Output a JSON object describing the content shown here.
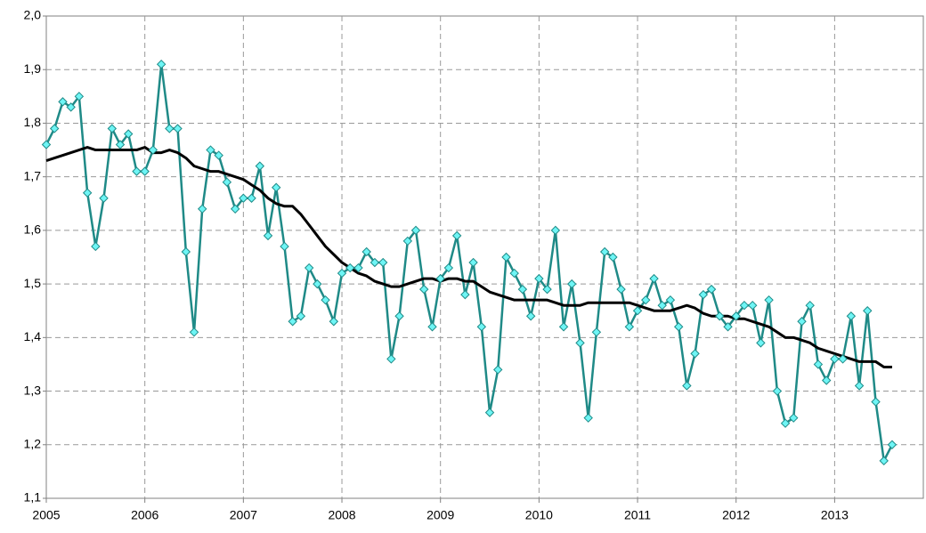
{
  "chart_data": {
    "type": "line",
    "x": [
      2005,
      2005.083,
      2005.167,
      2005.25,
      2005.333,
      2005.417,
      2005.5,
      2005.583,
      2005.667,
      2005.75,
      2005.833,
      2005.917,
      2006,
      2006.083,
      2006.167,
      2006.25,
      2006.333,
      2006.417,
      2006.5,
      2006.583,
      2006.667,
      2006.75,
      2006.833,
      2006.917,
      2007,
      2007.083,
      2007.167,
      2007.25,
      2007.333,
      2007.417,
      2007.5,
      2007.583,
      2007.667,
      2007.75,
      2007.833,
      2007.917,
      2008,
      2008.083,
      2008.167,
      2008.25,
      2008.333,
      2008.417,
      2008.5,
      2008.583,
      2008.667,
      2008.75,
      2008.833,
      2008.917,
      2009,
      2009.083,
      2009.167,
      2009.25,
      2009.333,
      2009.417,
      2009.5,
      2009.583,
      2009.667,
      2009.75,
      2009.833,
      2009.917,
      2010,
      2010.083,
      2010.167,
      2010.25,
      2010.333,
      2010.417,
      2010.5,
      2010.583,
      2010.667,
      2010.75,
      2010.833,
      2010.917,
      2011,
      2011.083,
      2011.167,
      2011.25,
      2011.333,
      2011.417,
      2011.5,
      2011.583,
      2011.667,
      2011.75,
      2011.833,
      2011.917,
      2012,
      2012.083,
      2012.167,
      2012.25,
      2012.333,
      2012.417,
      2012.5,
      2012.583,
      2012.667,
      2012.75,
      2012.833,
      2012.917,
      2013,
      2013.083,
      2013.167,
      2013.25,
      2013.333,
      2013.417,
      2013.5,
      2013.583
    ],
    "series": [
      {
        "color": "#1f8a87",
        "marker": "diamond",
        "marker_color": "#6ef5f5",
        "values": [
          1.76,
          1.79,
          1.84,
          1.83,
          1.85,
          1.67,
          1.57,
          1.66,
          1.79,
          1.76,
          1.78,
          1.71,
          1.71,
          1.75,
          1.91,
          1.79,
          1.79,
          1.56,
          1.41,
          1.64,
          1.75,
          1.74,
          1.69,
          1.64,
          1.66,
          1.66,
          1.72,
          1.59,
          1.68,
          1.57,
          1.43,
          1.44,
          1.53,
          1.5,
          1.47,
          1.43,
          1.52,
          1.53,
          1.53,
          1.56,
          1.54,
          1.54,
          1.36,
          1.44,
          1.58,
          1.6,
          1.49,
          1.42,
          1.51,
          1.53,
          1.59,
          1.48,
          1.54,
          1.42,
          1.26,
          1.34,
          1.55,
          1.52,
          1.49,
          1.44,
          1.51,
          1.49,
          1.6,
          1.42,
          1.5,
          1.39,
          1.25,
          1.41,
          1.56,
          1.55,
          1.49,
          1.42,
          1.45,
          1.47,
          1.51,
          1.46,
          1.47,
          1.42,
          1.31,
          1.37,
          1.48,
          1.49,
          1.44,
          1.42,
          1.44,
          1.46,
          1.46,
          1.39,
          1.47,
          1.3,
          1.24,
          1.25,
          1.43,
          1.46,
          1.35,
          1.32,
          1.36,
          1.36,
          1.44,
          1.31,
          1.45,
          1.28,
          1.17,
          1.2
        ]
      },
      {
        "color": "#000000",
        "values": [
          1.73,
          1.735,
          1.74,
          1.745,
          1.75,
          1.755,
          1.75,
          1.75,
          1.75,
          1.75,
          1.75,
          1.75,
          1.755,
          1.745,
          1.745,
          1.75,
          1.745,
          1.735,
          1.72,
          1.715,
          1.71,
          1.71,
          1.705,
          1.7,
          1.695,
          1.685,
          1.675,
          1.66,
          1.65,
          1.645,
          1.645,
          1.63,
          1.61,
          1.59,
          1.57,
          1.555,
          1.54,
          1.53,
          1.52,
          1.515,
          1.505,
          1.5,
          1.495,
          1.495,
          1.5,
          1.505,
          1.51,
          1.51,
          1.505,
          1.51,
          1.51,
          1.505,
          1.505,
          1.495,
          1.485,
          1.48,
          1.475,
          1.47,
          1.47,
          1.47,
          1.47,
          1.47,
          1.465,
          1.46,
          1.46,
          1.46,
          1.465,
          1.465,
          1.465,
          1.465,
          1.465,
          1.465,
          1.46,
          1.455,
          1.45,
          1.45,
          1.45,
          1.455,
          1.46,
          1.455,
          1.445,
          1.44,
          1.44,
          1.44,
          1.435,
          1.435,
          1.43,
          1.425,
          1.42,
          1.41,
          1.4,
          1.4,
          1.395,
          1.39,
          1.38,
          1.375,
          1.37,
          1.365,
          1.36,
          1.355,
          1.355,
          1.355,
          1.345,
          1.345
        ]
      }
    ],
    "xlim": [
      2005,
      2013.9
    ],
    "xticks": [
      2005,
      2006,
      2007,
      2008,
      2009,
      2010,
      2011,
      2012,
      2013
    ],
    "ylim": [
      1.1,
      2.0
    ],
    "yticks": [
      {
        "value": 1.1,
        "label": "1,1"
      },
      {
        "value": 1.2,
        "label": "1,2"
      },
      {
        "value": 1.3,
        "label": "1,3"
      },
      {
        "value": 1.4,
        "label": "1,4"
      },
      {
        "value": 1.5,
        "label": "1,5"
      },
      {
        "value": 1.6,
        "label": "1,6"
      },
      {
        "value": 1.7,
        "label": "1,7"
      },
      {
        "value": 1.8,
        "label": "1,8"
      },
      {
        "value": 1.9,
        "label": "1,9"
      },
      {
        "value": 2.0,
        "label": "2,0"
      }
    ],
    "grid": true
  }
}
